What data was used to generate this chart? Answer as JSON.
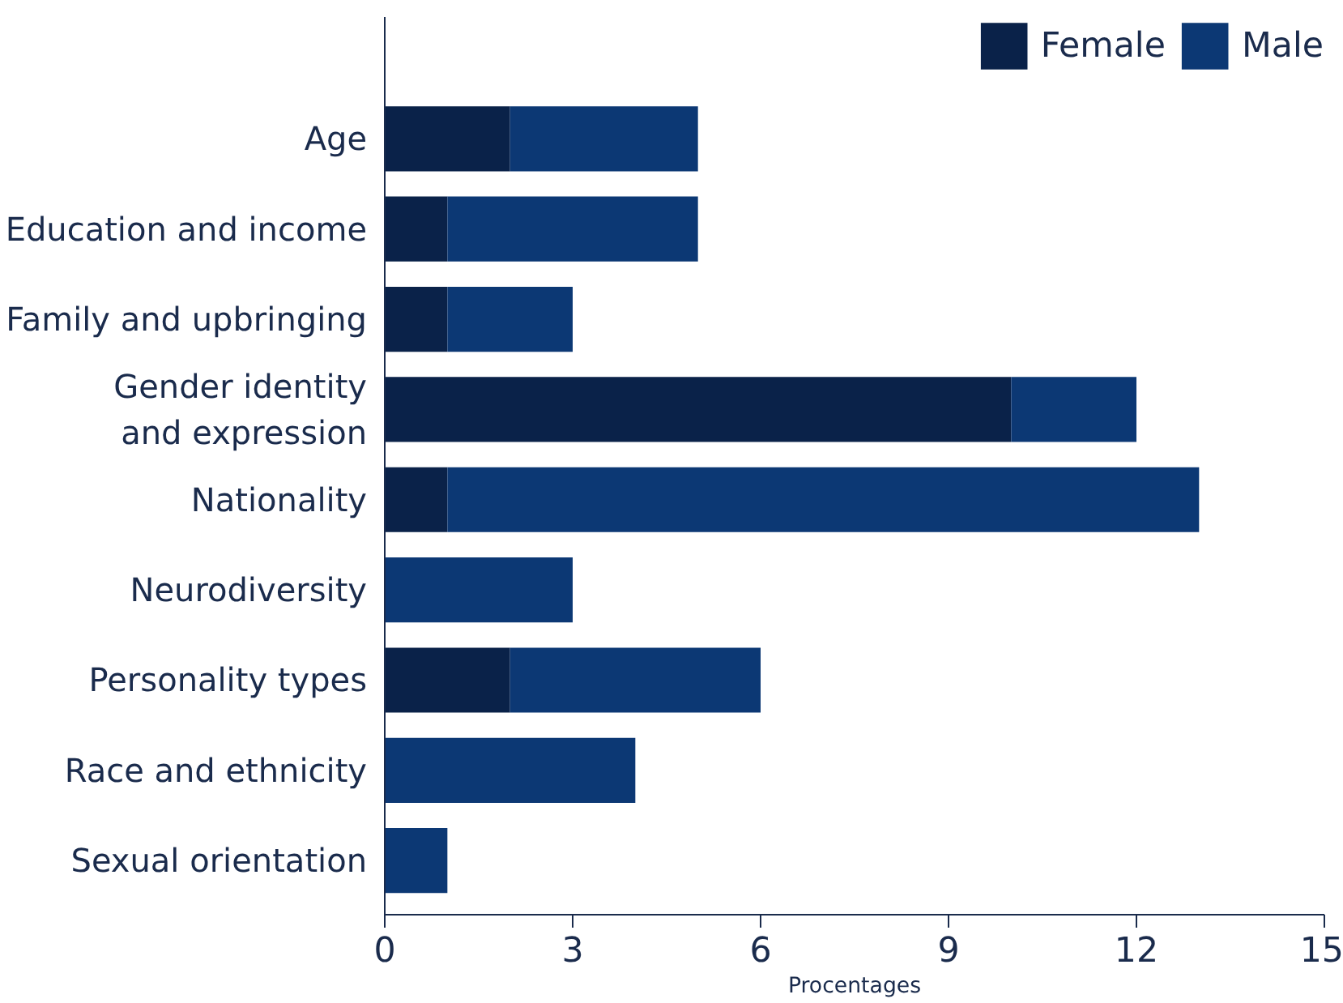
{
  "chart_data": {
    "type": "bar",
    "orientation": "horizontal",
    "stacked": true,
    "categories": [
      "Age",
      "Education and income",
      "Family and upbringing",
      "Gender identity\nand expression",
      "Nationality",
      "Neurodiversity",
      "Personality types",
      "Race and ethnicity",
      "Sexual orientation"
    ],
    "series": [
      {
        "name": "Female",
        "color": "#0a2249",
        "values": [
          2,
          1,
          1,
          10,
          1,
          0,
          2,
          0,
          0
        ]
      },
      {
        "name": "Male",
        "color": "#0c3874",
        "values": [
          3,
          4,
          2,
          2,
          12,
          3,
          4,
          4,
          1
        ]
      }
    ],
    "xlabel": "Procentages",
    "xlim": [
      0,
      15
    ],
    "xticks": [
      0,
      3,
      6,
      9,
      12,
      15
    ],
    "grid": false,
    "legend": "top right"
  }
}
